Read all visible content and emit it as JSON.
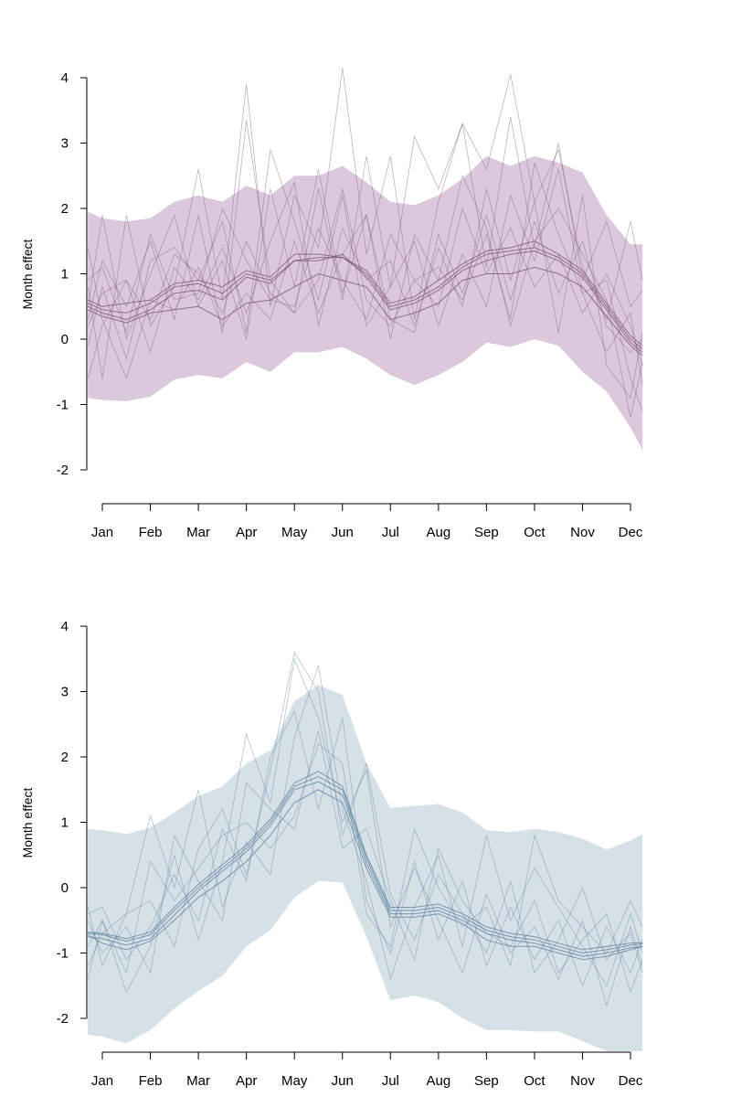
{
  "chart_data": [
    {
      "type": "line",
      "ylabel": "Month effect",
      "ylim": [
        -2,
        4
      ],
      "yticks": [
        4,
        3,
        2,
        1,
        0,
        -1,
        -2
      ],
      "categories": [
        "Jan",
        "Feb",
        "Mar",
        "Apr",
        "May",
        "Jun",
        "Jul",
        "Aug",
        "Sep",
        "Oct",
        "Nov",
        "Dec"
      ],
      "band_color": "#dcc8dc",
      "line_color": "#7a4f7a",
      "band": {
        "x": [
          0.7,
          1,
          1.5,
          2,
          2.5,
          3,
          3.5,
          4,
          4.5,
          5,
          5.5,
          6,
          6.5,
          7,
          7.5,
          8,
          8.5,
          9,
          9.5,
          10,
          10.5,
          11,
          11.5,
          12,
          12.25
        ],
        "upper": [
          1.95,
          1.85,
          1.8,
          1.85,
          2.1,
          2.2,
          2.1,
          2.35,
          2.2,
          2.5,
          2.5,
          2.65,
          2.4,
          2.1,
          2.05,
          2.2,
          2.45,
          2.8,
          2.65,
          2.8,
          2.7,
          2.55,
          1.9,
          1.45,
          1.45
        ],
        "lower": [
          -0.9,
          -0.93,
          -0.95,
          -0.88,
          -0.62,
          -0.55,
          -0.6,
          -0.35,
          -0.5,
          -0.2,
          -0.2,
          -0.12,
          -0.3,
          -0.55,
          -0.7,
          -0.55,
          -0.35,
          -0.05,
          -0.12,
          0.0,
          -0.1,
          -0.5,
          -0.8,
          -1.35,
          -1.7
        ]
      },
      "x": [
        0.7,
        1,
        1.5,
        2,
        2.5,
        3,
        3.5,
        4,
        4.5,
        5,
        5.5,
        6,
        6.5,
        7,
        7.5,
        8,
        8.5,
        9,
        9.5,
        10,
        10.5,
        11,
        11.5,
        12,
        12.25
      ],
      "series": [
        {
          "values": [
            0.55,
            0.45,
            0.4,
            0.55,
            0.8,
            0.85,
            0.7,
            1.0,
            0.9,
            1.2,
            1.25,
            1.25,
            1.0,
            0.5,
            0.6,
            0.8,
            1.1,
            1.3,
            1.35,
            1.4,
            1.25,
            1.0,
            0.5,
            0.0,
            -0.15
          ]
        },
        {
          "values": [
            0.5,
            0.4,
            0.3,
            0.45,
            0.7,
            0.75,
            0.6,
            0.95,
            0.85,
            1.2,
            1.2,
            1.3,
            0.95,
            0.45,
            0.55,
            0.75,
            1.05,
            1.2,
            1.3,
            1.35,
            1.2,
            0.95,
            0.45,
            -0.05,
            -0.2
          ]
        },
        {
          "values": [
            0.6,
            0.5,
            0.55,
            0.6,
            0.85,
            0.9,
            0.8,
            1.05,
            0.95,
            1.3,
            1.3,
            1.25,
            1.05,
            0.55,
            0.65,
            0.9,
            1.15,
            1.35,
            1.4,
            1.5,
            1.3,
            1.05,
            0.55,
            0.05,
            -0.1
          ]
        },
        {
          "values": [
            0.45,
            0.35,
            0.25,
            0.4,
            0.45,
            0.5,
            0.3,
            0.55,
            0.6,
            0.8,
            1.0,
            0.9,
            0.8,
            0.3,
            0.4,
            0.55,
            0.9,
            1.0,
            1.0,
            1.1,
            1.0,
            0.8,
            0.35,
            -0.1,
            -0.25
          ]
        },
        {
          "values": [
            1.4,
            0.3,
            -0.6,
            0.6,
            0.45,
            1.1,
            0.2,
            0.7,
            0.3,
            1.5,
            0.4,
            1.3,
            1.9,
            0.3,
            0.1,
            1.6,
            0.7,
            1.9,
            0.6,
            1.8,
            0.7,
            1.5,
            0.2,
            -0.2,
            0.0
          ]
        },
        {
          "values": [
            -0.1,
            0.8,
            -0.3,
            1.2,
            1.4,
            0.9,
            1.8,
            0.1,
            2.9,
            1.8,
            0.6,
            2.2,
            0.2,
            0.8,
            1.5,
            0.2,
            1.3,
            0.5,
            2.2,
            1.2,
            2.6,
            0.7,
            0.9,
            -0.6,
            -1.1
          ]
        },
        {
          "values": [
            0.8,
            -0.6,
            1.9,
            0.2,
            0.8,
            2.6,
            0.6,
            3.9,
            0.5,
            2.2,
            1.4,
            4.15,
            1.3,
            2.8,
            0.3,
            2.1,
            3.3,
            1.1,
            3.4,
            1.4,
            3.0,
            0.9,
            1.8,
            0.5,
            0.75
          ]
        },
        {
          "values": [
            0.3,
            1.2,
            0.5,
            1.5,
            0.3,
            1.9,
            0.1,
            3.35,
            0.9,
            0.4,
            2.3,
            0.6,
            2.8,
            0.8,
            3.1,
            2.3,
            3.3,
            2.6,
            4.05,
            2.1,
            2.9,
            1.1,
            0.3,
            1.8,
            0.9
          ]
        },
        {
          "values": [
            -0.6,
            0.2,
            0.9,
            -0.2,
            1.1,
            0.6,
            1.4,
            0.4,
            1.5,
            2.4,
            0.2,
            1.7,
            0.9,
            1.2,
            0.2,
            1.4,
            0.5,
            2.3,
            0.9,
            2.1,
            0.1,
            2.2,
            -0.4,
            -0.9,
            0.1
          ]
        },
        {
          "values": [
            0.9,
            1.1,
            0.1,
            1.6,
            0.6,
            0.7,
            2.0,
            1.2,
            0.6,
            0.5,
            1.7,
            0.9,
            0.3,
            1.6,
            0.9,
            0.5,
            2.0,
            1.0,
            1.7,
            0.8,
            1.3,
            0.4,
            1.0,
            0.2,
            -0.4
          ]
        },
        {
          "values": [
            0.2,
            0.7,
            0.9,
            0.3,
            1.3,
            1.0,
            0.4,
            1.5,
            0.7,
            0.4,
            0.9,
            2.3,
            0.6,
            0.2,
            0.9,
            1.1,
            0.6,
            1.6,
            0.3,
            2.7,
            1.6,
            0.7,
            -0.2,
            0.4,
            -0.7
          ]
        },
        {
          "values": [
            0.5,
            1.9,
            0.0,
            1.0,
            1.9,
            0.5,
            1.2,
            0.0,
            2.3,
            0.8,
            2.6,
            0.7,
            1.9,
            0.0,
            1.6,
            0.9,
            2.5,
            1.7,
            0.2,
            1.5,
            2.0,
            1.3,
            0.6,
            -1.2,
            -0.35
          ]
        }
      ]
    },
    {
      "type": "line",
      "ylabel": "Month effect",
      "ylim": [
        -2,
        4
      ],
      "yticks": [
        4,
        3,
        2,
        1,
        0,
        -1,
        -2
      ],
      "categories": [
        "Jan",
        "Feb",
        "Mar",
        "Apr",
        "May",
        "Jun",
        "Jul",
        "Aug",
        "Sep",
        "Oct",
        "Nov",
        "Dec"
      ],
      "band_color": "#d5e0e7",
      "line_color": "#5a7d9c",
      "band": {
        "x": [
          0.7,
          1,
          1.5,
          2,
          2.5,
          3,
          3.5,
          4,
          4.5,
          5,
          5.5,
          6,
          6.5,
          7,
          7.5,
          8,
          8.5,
          9,
          9.5,
          10,
          10.5,
          11,
          11.5,
          12,
          12.25
        ],
        "upper": [
          0.9,
          0.88,
          0.82,
          0.92,
          1.15,
          1.4,
          1.55,
          1.9,
          2.1,
          2.85,
          3.1,
          2.95,
          1.9,
          1.22,
          1.25,
          1.28,
          1.15,
          0.88,
          0.85,
          0.9,
          0.85,
          0.75,
          0.58,
          0.72,
          0.82
        ],
        "lower": [
          -2.25,
          -2.28,
          -2.38,
          -2.18,
          -1.85,
          -1.58,
          -1.35,
          -0.9,
          -0.65,
          -0.15,
          0.1,
          0.08,
          -0.75,
          -1.72,
          -1.65,
          -1.75,
          -2.0,
          -2.18,
          -2.18,
          -2.2,
          -2.2,
          -2.35,
          -2.5,
          -2.5,
          -2.5
        ]
      },
      "x": [
        0.7,
        1,
        1.5,
        2,
        2.5,
        3,
        3.5,
        4,
        4.5,
        5,
        5.5,
        6,
        6.5,
        7,
        7.5,
        8,
        8.5,
        9,
        9.5,
        10,
        10.5,
        11,
        11.5,
        12,
        12.25
      ],
      "series": [
        {
          "values": [
            -0.7,
            -0.72,
            -0.82,
            -0.72,
            -0.35,
            0.0,
            0.3,
            0.6,
            1.0,
            1.55,
            1.7,
            1.5,
            0.45,
            -0.35,
            -0.35,
            -0.3,
            -0.45,
            -0.65,
            -0.75,
            -0.8,
            -0.9,
            -1.0,
            -0.95,
            -0.88,
            -0.86
          ]
        },
        {
          "values": [
            -0.75,
            -0.78,
            -0.88,
            -0.78,
            -0.42,
            -0.05,
            0.25,
            0.55,
            0.95,
            1.5,
            1.62,
            1.42,
            0.38,
            -0.4,
            -0.4,
            -0.35,
            -0.5,
            -0.7,
            -0.8,
            -0.85,
            -0.95,
            -1.05,
            -1.0,
            -0.92,
            -0.9
          ]
        },
        {
          "values": [
            -0.68,
            -0.7,
            -0.78,
            -0.68,
            -0.3,
            0.05,
            0.35,
            0.65,
            1.05,
            1.6,
            1.78,
            1.55,
            0.5,
            -0.3,
            -0.3,
            -0.25,
            -0.4,
            -0.6,
            -0.7,
            -0.75,
            -0.85,
            -0.95,
            -0.9,
            -0.85,
            -0.84
          ]
        },
        {
          "values": [
            -0.72,
            -0.85,
            -0.95,
            -0.82,
            -0.5,
            -0.15,
            0.1,
            0.4,
            0.8,
            1.3,
            1.5,
            1.3,
            0.3,
            -0.45,
            -0.45,
            -0.4,
            -0.55,
            -0.8,
            -0.9,
            -0.9,
            -1.0,
            -1.1,
            -1.05,
            -0.95,
            -0.9
          ]
        },
        {
          "values": [
            -0.4,
            -0.3,
            -1.1,
            -0.6,
            0.2,
            -0.5,
            0.9,
            0.1,
            2.0,
            2.7,
            1.2,
            2.6,
            -0.2,
            -1.0,
            0.4,
            -0.8,
            0.1,
            -1.2,
            -0.3,
            -1.1,
            -0.5,
            -1.5,
            -0.6,
            -1.3,
            -0.8
          ]
        },
        {
          "values": [
            -1.4,
            -0.5,
            -1.6,
            -0.9,
            0.5,
            -0.8,
            0.4,
            2.35,
            1.3,
            3.5,
            2.6,
            1.0,
            1.8,
            -0.6,
            0.3,
            -0.5,
            -1.3,
            -0.1,
            -1.0,
            -0.6,
            -1.4,
            -0.5,
            -1.8,
            -0.6,
            -1.2
          ]
        },
        {
          "values": [
            -0.3,
            -1.2,
            -0.4,
            1.1,
            0.0,
            1.5,
            -0.3,
            0.7,
            0.2,
            2.3,
            3.4,
            1.2,
            0.1,
            -1.4,
            -0.3,
            0.5,
            -0.9,
            0.8,
            -0.5,
            0.3,
            -0.3,
            -0.9,
            -1.5,
            -0.4,
            -1.0
          ]
        },
        {
          "values": [
            -1.2,
            -0.7,
            -0.4,
            -0.2,
            -0.9,
            0.6,
            1.2,
            0.2,
            1.8,
            3.6,
            3.0,
            0.8,
            1.9,
            -0.1,
            -0.8,
            0.2,
            -0.4,
            -1.0,
            0.1,
            -1.3,
            -0.8,
            0.0,
            -1.1,
            -0.7,
            -1.3
          ]
        },
        {
          "values": [
            -0.9,
            -0.5,
            -1.3,
            0.4,
            -0.2,
            0.3,
            0.8,
            1.0,
            0.6,
            1.1,
            2.2,
            1.9,
            -0.4,
            -0.9,
            0.9,
            0.0,
            -0.6,
            -0.3,
            -1.2,
            0.8,
            -0.2,
            -0.6,
            -1.0,
            -0.2,
            -0.6
          ]
        },
        {
          "values": [
            -0.5,
            -1.0,
            -0.6,
            -1.3,
            0.8,
            0.1,
            -0.5,
            1.6,
            1.2,
            0.9,
            2.4,
            0.6,
            0.9,
            -0.2,
            -1.1,
            0.6,
            -0.2,
            -0.7,
            -0.9,
            -0.2,
            -1.3,
            -0.8,
            -0.4,
            -1.6,
            -1.1
          ]
        }
      ]
    }
  ]
}
